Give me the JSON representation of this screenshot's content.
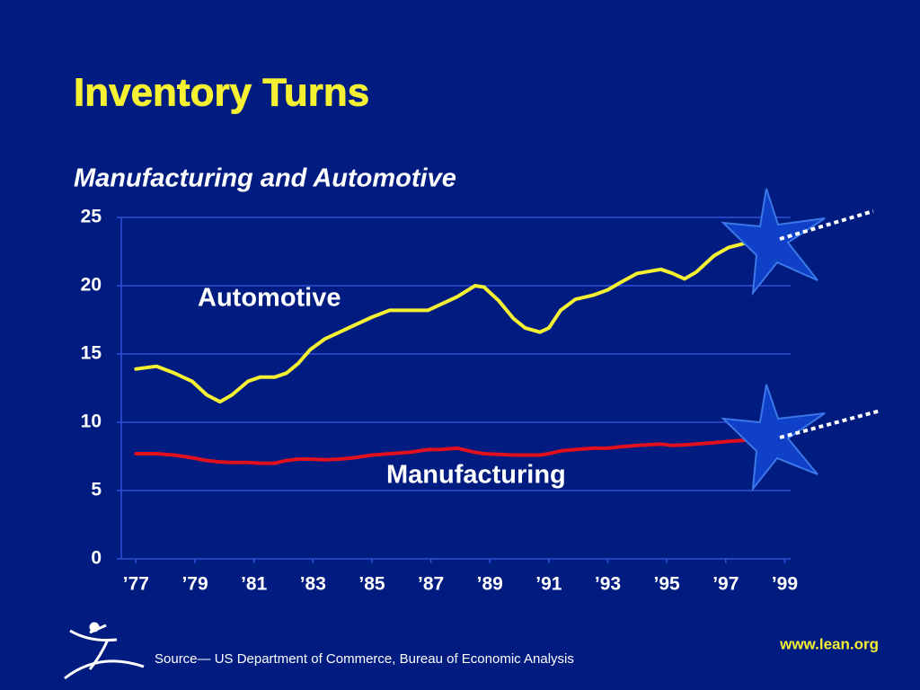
{
  "chart_data": {
    "type": "line",
    "title": "Inventory Turns",
    "subtitle": "Manufacturing and Automotive",
    "annotations": [
      "Automotive",
      "Manufacturing"
    ],
    "source": "Source— US Department of Commerce, Bureau of Economic Analysis",
    "website": "www.lean.org",
    "x": [
      1977.0,
      1977.7,
      1978.3,
      1978.9,
      1979.4,
      1979.85,
      1980.25,
      1980.8,
      1981.2,
      1981.7,
      1982.1,
      1982.5,
      1982.9,
      1983.4,
      1983.9,
      1984.4,
      1985.0,
      1985.6,
      1986.3,
      1986.9,
      1987.3,
      1987.9,
      1988.5,
      1988.8,
      1989.3,
      1989.8,
      1990.2,
      1990.7,
      1991.0,
      1991.4,
      1991.9,
      1992.5,
      1993.0,
      1993.4,
      1994.0,
      1994.8,
      1995.2,
      1995.6,
      1996.0,
      1996.6,
      1997.1,
      1997.8,
      1998.6
    ],
    "series": [
      {
        "name": "Automotive",
        "color": "#f5f032",
        "values": [
          13.9,
          14.1,
          13.6,
          13.0,
          12.0,
          11.5,
          12.0,
          13.0,
          13.3,
          13.3,
          13.6,
          14.3,
          15.3,
          16.1,
          16.6,
          17.1,
          17.7,
          18.2,
          18.2,
          18.2,
          18.6,
          19.2,
          20.0,
          19.9,
          18.9,
          17.6,
          16.9,
          16.6,
          16.9,
          18.2,
          19.0,
          19.3,
          19.7,
          20.2,
          20.9,
          21.2,
          20.9,
          20.5,
          21.0,
          22.2,
          22.8,
          23.2,
          23.4
        ]
      },
      {
        "name": "Manufacturing",
        "color": "#e0101e",
        "values": [
          7.7,
          7.7,
          7.6,
          7.4,
          7.2,
          7.1,
          7.05,
          7.05,
          7.0,
          7.0,
          7.2,
          7.3,
          7.3,
          7.25,
          7.3,
          7.4,
          7.6,
          7.7,
          7.8,
          8.0,
          8.0,
          8.1,
          7.8,
          7.7,
          7.65,
          7.6,
          7.6,
          7.6,
          7.7,
          7.9,
          8.0,
          8.1,
          8.1,
          8.2,
          8.3,
          8.4,
          8.3,
          8.35,
          8.4,
          8.5,
          8.6,
          8.7,
          8.8
        ]
      }
    ],
    "xlim": [
      1976.5,
      1999.2
    ],
    "xticks": [
      {
        "value": 1977,
        "label": "’77"
      },
      {
        "value": 1979,
        "label": "’79"
      },
      {
        "value": 1981,
        "label": "’81"
      },
      {
        "value": 1983,
        "label": "’83"
      },
      {
        "value": 1985,
        "label": "’85"
      },
      {
        "value": 1987,
        "label": "’87"
      },
      {
        "value": 1989,
        "label": "’89"
      },
      {
        "value": 1991,
        "label": "’91"
      },
      {
        "value": 1993,
        "label": "’93"
      },
      {
        "value": 1995,
        "label": "’95"
      },
      {
        "value": 1997,
        "label": "’97"
      },
      {
        "value": 1999,
        "label": "’99"
      }
    ],
    "ylim": [
      0,
      25
    ],
    "yticks": [
      0,
      5,
      10,
      15,
      20,
      25
    ],
    "grid": true
  }
}
